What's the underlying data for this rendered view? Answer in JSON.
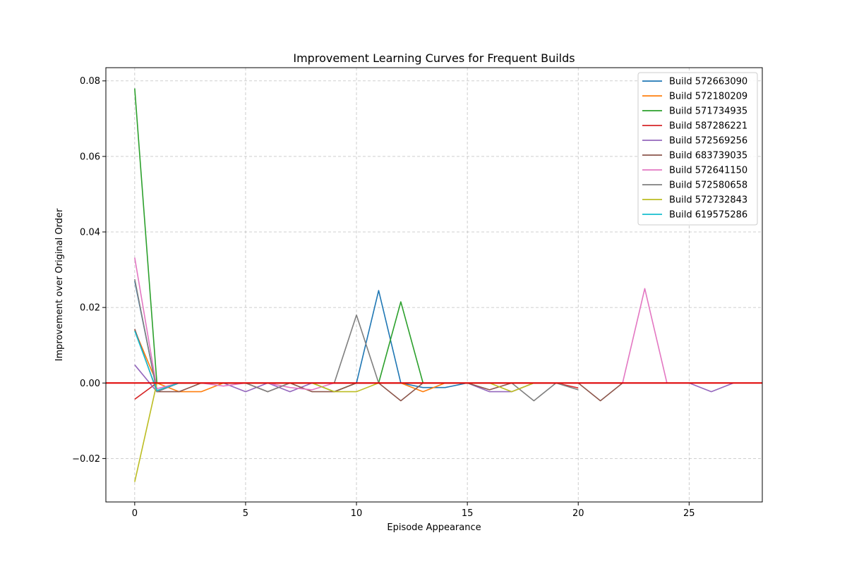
{
  "chart_data": {
    "type": "line",
    "title": "Improvement Learning Curves for Frequent Builds",
    "xlabel": "Episode Appearance",
    "ylabel": "Improvement over Original Order",
    "xlim": [
      -1.3,
      28.3
    ],
    "ylim": [
      -0.0315,
      0.0835
    ],
    "xticks": [
      0,
      5,
      10,
      15,
      20,
      25
    ],
    "yticks": [
      -0.02,
      0.0,
      0.02,
      0.04,
      0.06,
      0.08
    ],
    "ytick_labels": [
      "−0.02",
      "0.00",
      "0.02",
      "0.04",
      "0.06",
      "0.08"
    ],
    "grid": true,
    "legend_position": "top-right",
    "reference_line": {
      "y": 0.0,
      "color": "#e00000"
    },
    "series": [
      {
        "name": "Build 572663090",
        "color": "#1f77b4",
        "x": [
          0,
          1,
          2,
          3,
          4,
          5,
          6,
          7,
          8,
          9,
          10,
          11,
          12,
          13,
          14,
          15
        ],
        "y": [
          0.027,
          -0.002,
          0,
          0,
          0,
          0,
          0,
          0,
          0,
          0,
          0,
          0.0245,
          0,
          -0.0012,
          -0.0012,
          0
        ]
      },
      {
        "name": "Build 572180209",
        "color": "#ff7f0e",
        "x": [
          0,
          1,
          2,
          3,
          4,
          5,
          6,
          7,
          8,
          9,
          10,
          11,
          12,
          13,
          14,
          15,
          16,
          17,
          18,
          19,
          20
        ],
        "y": [
          0.014,
          0,
          -0.0023,
          -0.0023,
          0,
          0,
          0,
          0,
          0,
          0,
          0,
          0,
          0,
          -0.0023,
          0,
          0,
          0,
          0,
          0,
          0,
          0
        ]
      },
      {
        "name": "Build 571734935",
        "color": "#2ca02c",
        "x": [
          0,
          1,
          2,
          3,
          4,
          5,
          6,
          7,
          8,
          9,
          10,
          11,
          12,
          13
        ],
        "y": [
          0.078,
          0,
          0,
          0,
          0,
          0,
          0,
          0,
          0,
          -0.0023,
          0,
          0,
          0.0215,
          0
        ]
      },
      {
        "name": "Build 587286221",
        "color": "#d62728",
        "x": [
          0,
          1,
          2,
          3,
          4,
          5,
          6,
          7,
          8,
          9,
          10,
          11,
          12,
          13,
          14,
          15,
          16,
          17,
          18,
          19,
          20
        ],
        "y": [
          -0.0043,
          0,
          0,
          0,
          0,
          0,
          0,
          0,
          0,
          0,
          0,
          0,
          0,
          0,
          0,
          0,
          0,
          0,
          0,
          0,
          -0.0013
        ]
      },
      {
        "name": "Build 572569256",
        "color": "#9467bd",
        "x": [
          0,
          1,
          2,
          3,
          4,
          5,
          6,
          7,
          8,
          9,
          10,
          11,
          12,
          13,
          14,
          15,
          16,
          17,
          18,
          19,
          20,
          21,
          22,
          23,
          24,
          25,
          26,
          27
        ],
        "y": [
          0.0048,
          -0.0023,
          0,
          0,
          0,
          -0.0023,
          0,
          -0.0023,
          0,
          0,
          0,
          0,
          0,
          0,
          0,
          0,
          -0.0023,
          -0.0023,
          0,
          0,
          0,
          0,
          0,
          0,
          0,
          0,
          -0.0023,
          0
        ]
      },
      {
        "name": "Build 683739035",
        "color": "#8c564b",
        "x": [
          0,
          1,
          2,
          3,
          4,
          5,
          6,
          7,
          8,
          9,
          10,
          11,
          12,
          13,
          14,
          15,
          16,
          17,
          18,
          19,
          20,
          21,
          22
        ],
        "y": [
          0.0143,
          -0.0023,
          -0.0023,
          0,
          0,
          0,
          -0.0023,
          0,
          -0.0023,
          -0.0023,
          0,
          0,
          -0.0047,
          0,
          0,
          0,
          -0.0018,
          0,
          0,
          0,
          0,
          -0.0047,
          0
        ]
      },
      {
        "name": "Build 572641150",
        "color": "#e377c2",
        "x": [
          0,
          1,
          2,
          3,
          4,
          5,
          6,
          7,
          8,
          9,
          10,
          11,
          12,
          13,
          14,
          15,
          16,
          17,
          18,
          19,
          20,
          21,
          22,
          23,
          24
        ],
        "y": [
          0.0332,
          -0.0015,
          0,
          0,
          -0.0008,
          0,
          0,
          -0.0012,
          -0.0018,
          0,
          0,
          0,
          0,
          0,
          0,
          0,
          0,
          0,
          0,
          0,
          0,
          0,
          0,
          0.025,
          0
        ]
      },
      {
        "name": "Build 572580658",
        "color": "#7f7f7f",
        "x": [
          0,
          1,
          2,
          3,
          4,
          5,
          6,
          7,
          8,
          9,
          10,
          11,
          12,
          13,
          14,
          15,
          16,
          17,
          18,
          19,
          20
        ],
        "y": [
          0.0275,
          -0.0023,
          0,
          0,
          0,
          0,
          -0.0023,
          0,
          0,
          0,
          0.018,
          0,
          0,
          0,
          0,
          0,
          0,
          0,
          -0.0047,
          0,
          -0.0018
        ]
      },
      {
        "name": "Build 572732843",
        "color": "#bcbd22",
        "x": [
          0,
          1,
          2,
          3,
          4,
          5,
          6,
          7,
          8,
          9,
          10,
          11,
          12,
          13,
          14,
          15,
          16,
          17,
          18
        ],
        "y": [
          -0.0262,
          0,
          0,
          0,
          0,
          0,
          0,
          0,
          0,
          -0.0023,
          -0.0023,
          0,
          0,
          0,
          0,
          0,
          0,
          -0.0023,
          0
        ]
      },
      {
        "name": "Build 619575286",
        "color": "#17becf",
        "x": [
          0,
          1,
          2
        ],
        "y": [
          0.0138,
          -0.002,
          0
        ]
      }
    ]
  }
}
